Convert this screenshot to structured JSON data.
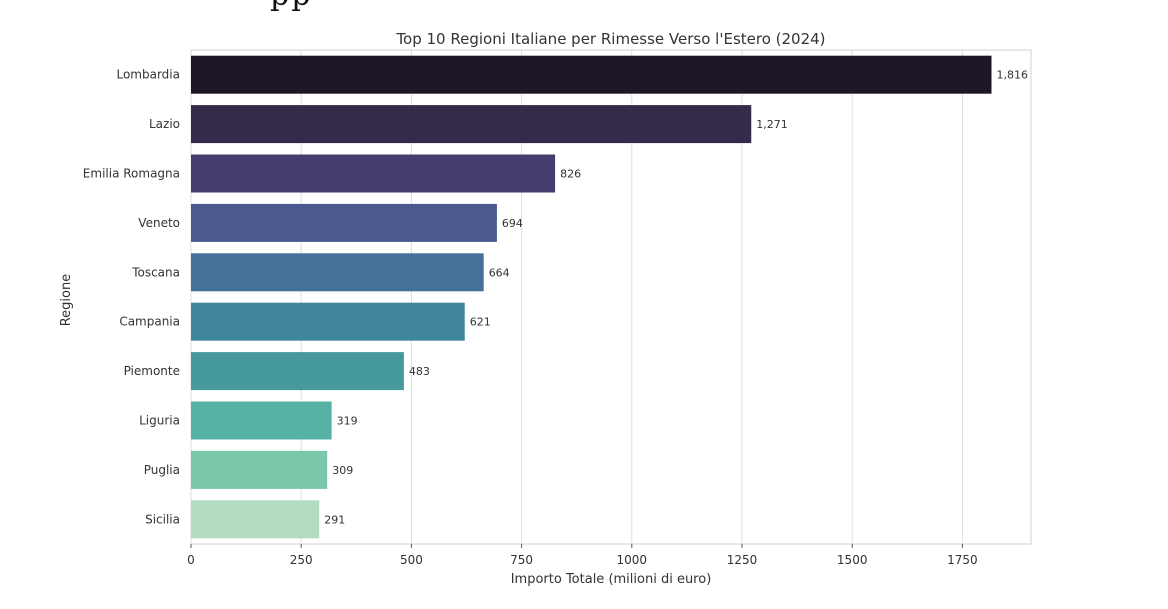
{
  "partial_text": "pp",
  "chart_data": {
    "type": "bar",
    "orientation": "horizontal",
    "title": "Top 10 Regioni Italiane per Rimesse Verso l'Estero (2024)",
    "xlabel": "Importo Totale (milioni di euro)",
    "ylabel": "Regione",
    "xlim": [
      0,
      1900
    ],
    "xticks": [
      0,
      250,
      500,
      750,
      1000,
      1250,
      1500,
      1750
    ],
    "xtick_labels": [
      "0",
      "250",
      "500",
      "750",
      "1000",
      "1250",
      "1500",
      "1750"
    ],
    "grid": "vertical",
    "categories": [
      "Lombardia",
      "Lazio",
      "Emilia Romagna",
      "Veneto",
      "Toscana",
      "Campania",
      "Piemonte",
      "Liguria",
      "Puglia",
      "Sicilia"
    ],
    "values": [
      1816,
      1271,
      826,
      694,
      664,
      621,
      483,
      319,
      309,
      291
    ],
    "value_labels": [
      "1,816",
      "1,271",
      "826",
      "694",
      "664",
      "621",
      "483",
      "319",
      "309",
      "291"
    ],
    "colors": [
      "#201726",
      "#352a4a",
      "#463d6e",
      "#4a5a8e",
      "#44709a",
      "#41879b",
      "#479a9b",
      "#56b2a5",
      "#79c8aa",
      "#b2dcc2"
    ]
  }
}
